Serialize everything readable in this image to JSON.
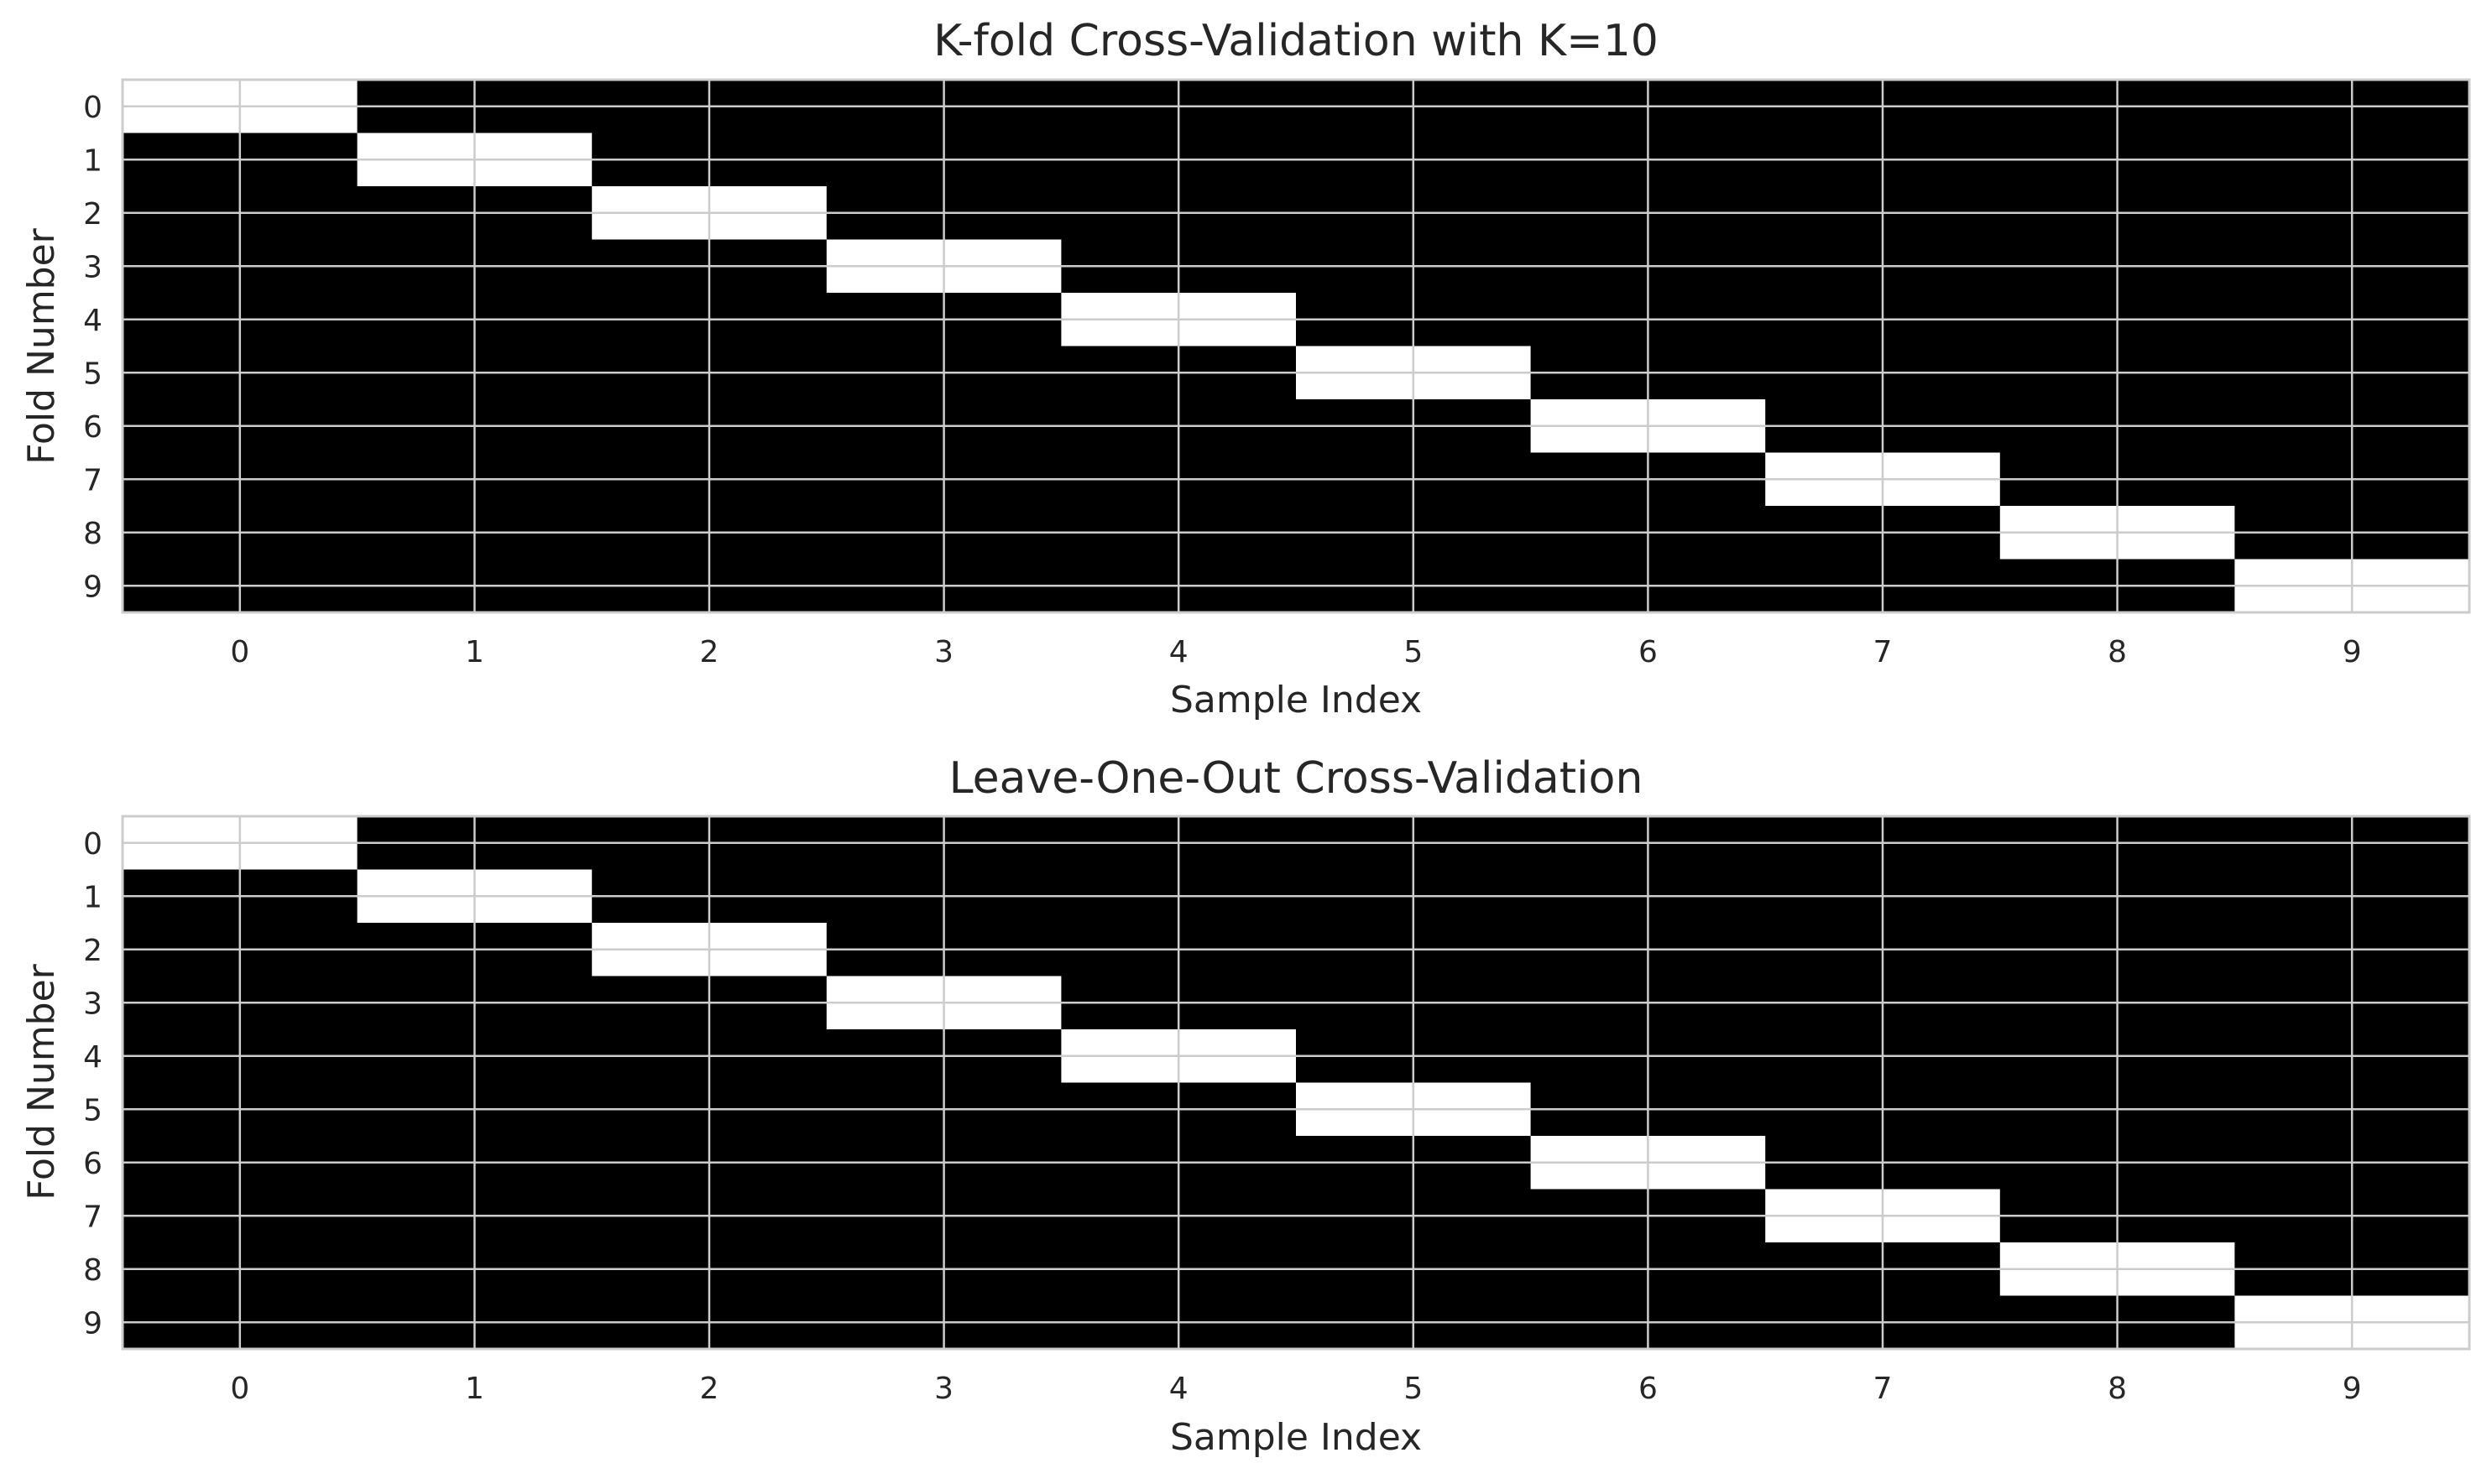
{
  "chart_data": [
    {
      "type": "heatmap",
      "title": "K-fold Cross-Validation with K=10",
      "xlabel": "Sample Index",
      "ylabel": "Fold Number",
      "x": [
        0,
        1,
        2,
        3,
        4,
        5,
        6,
        7,
        8,
        9
      ],
      "y": [
        0,
        1,
        2,
        3,
        4,
        5,
        6,
        7,
        8,
        9
      ],
      "xlim": [
        -0.5,
        9.5
      ],
      "ylim": [
        9.5,
        -0.5
      ],
      "grid": true,
      "colors": {
        "0": "#000000",
        "1": "#ffffff"
      },
      "values": [
        [
          1,
          0,
          0,
          0,
          0,
          0,
          0,
          0,
          0,
          0
        ],
        [
          0,
          1,
          0,
          0,
          0,
          0,
          0,
          0,
          0,
          0
        ],
        [
          0,
          0,
          1,
          0,
          0,
          0,
          0,
          0,
          0,
          0
        ],
        [
          0,
          0,
          0,
          1,
          0,
          0,
          0,
          0,
          0,
          0
        ],
        [
          0,
          0,
          0,
          0,
          1,
          0,
          0,
          0,
          0,
          0
        ],
        [
          0,
          0,
          0,
          0,
          0,
          1,
          0,
          0,
          0,
          0
        ],
        [
          0,
          0,
          0,
          0,
          0,
          0,
          1,
          0,
          0,
          0
        ],
        [
          0,
          0,
          0,
          0,
          0,
          0,
          0,
          1,
          0,
          0
        ],
        [
          0,
          0,
          0,
          0,
          0,
          0,
          0,
          0,
          1,
          0
        ],
        [
          0,
          0,
          0,
          0,
          0,
          0,
          0,
          0,
          0,
          1
        ]
      ]
    },
    {
      "type": "heatmap",
      "title": "Leave-One-Out Cross-Validation",
      "xlabel": "Sample Index",
      "ylabel": "Fold Number",
      "x": [
        0,
        1,
        2,
        3,
        4,
        5,
        6,
        7,
        8,
        9
      ],
      "y": [
        0,
        1,
        2,
        3,
        4,
        5,
        6,
        7,
        8,
        9
      ],
      "xlim": [
        -0.5,
        9.5
      ],
      "ylim": [
        9.5,
        -0.5
      ],
      "grid": true,
      "colors": {
        "0": "#000000",
        "1": "#ffffff"
      },
      "values": [
        [
          1,
          0,
          0,
          0,
          0,
          0,
          0,
          0,
          0,
          0
        ],
        [
          0,
          1,
          0,
          0,
          0,
          0,
          0,
          0,
          0,
          0
        ],
        [
          0,
          0,
          1,
          0,
          0,
          0,
          0,
          0,
          0,
          0
        ],
        [
          0,
          0,
          0,
          1,
          0,
          0,
          0,
          0,
          0,
          0
        ],
        [
          0,
          0,
          0,
          0,
          1,
          0,
          0,
          0,
          0,
          0
        ],
        [
          0,
          0,
          0,
          0,
          0,
          1,
          0,
          0,
          0,
          0
        ],
        [
          0,
          0,
          0,
          0,
          0,
          0,
          1,
          0,
          0,
          0
        ],
        [
          0,
          0,
          0,
          0,
          0,
          0,
          0,
          1,
          0,
          0
        ],
        [
          0,
          0,
          0,
          0,
          0,
          0,
          0,
          0,
          1,
          0
        ],
        [
          0,
          0,
          0,
          0,
          0,
          0,
          0,
          0,
          0,
          1
        ]
      ]
    }
  ]
}
